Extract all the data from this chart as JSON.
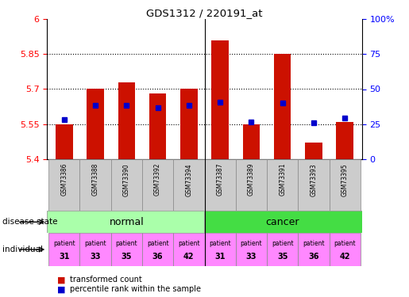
{
  "title": "GDS1312 / 220191_at",
  "samples": [
    "GSM73386",
    "GSM73388",
    "GSM73390",
    "GSM73392",
    "GSM73394",
    "GSM73387",
    "GSM73389",
    "GSM73391",
    "GSM73393",
    "GSM73395"
  ],
  "transformed_counts": [
    5.55,
    5.7,
    5.73,
    5.68,
    5.7,
    5.91,
    5.55,
    5.85,
    5.47,
    5.56
  ],
  "percentile_values": [
    5.57,
    5.63,
    5.63,
    5.62,
    5.63,
    5.645,
    5.558,
    5.64,
    5.556,
    5.575
  ],
  "y_min": 5.4,
  "y_max": 6.0,
  "y_ticks": [
    5.4,
    5.55,
    5.7,
    5.85,
    6.0
  ],
  "y_tick_labels": [
    "5.4",
    "5.55",
    "5.7",
    "5.85",
    "6"
  ],
  "right_y_ticks": [
    0,
    25,
    50,
    75,
    100
  ],
  "right_y_labels": [
    "0",
    "25",
    "50",
    "75",
    "100%"
  ],
  "disease_normal_color": "#AAFFAA",
  "disease_cancer_color": "#44DD44",
  "individual_color": "#FF88FF",
  "patients_normal": [
    "patient\n31",
    "patient\n33",
    "patient\n35",
    "patient\n36",
    "patient\n42"
  ],
  "patients_cancer": [
    "patient\n31",
    "patient\n33",
    "patient\n35",
    "patient\n36",
    "patient\n42"
  ],
  "bar_color": "#CC1100",
  "bar_bottom": 5.4,
  "blue_marker_color": "#0000CC",
  "sample_box_color": "#CCCCCC",
  "label_disease_state": "disease state",
  "label_individual": "individual"
}
